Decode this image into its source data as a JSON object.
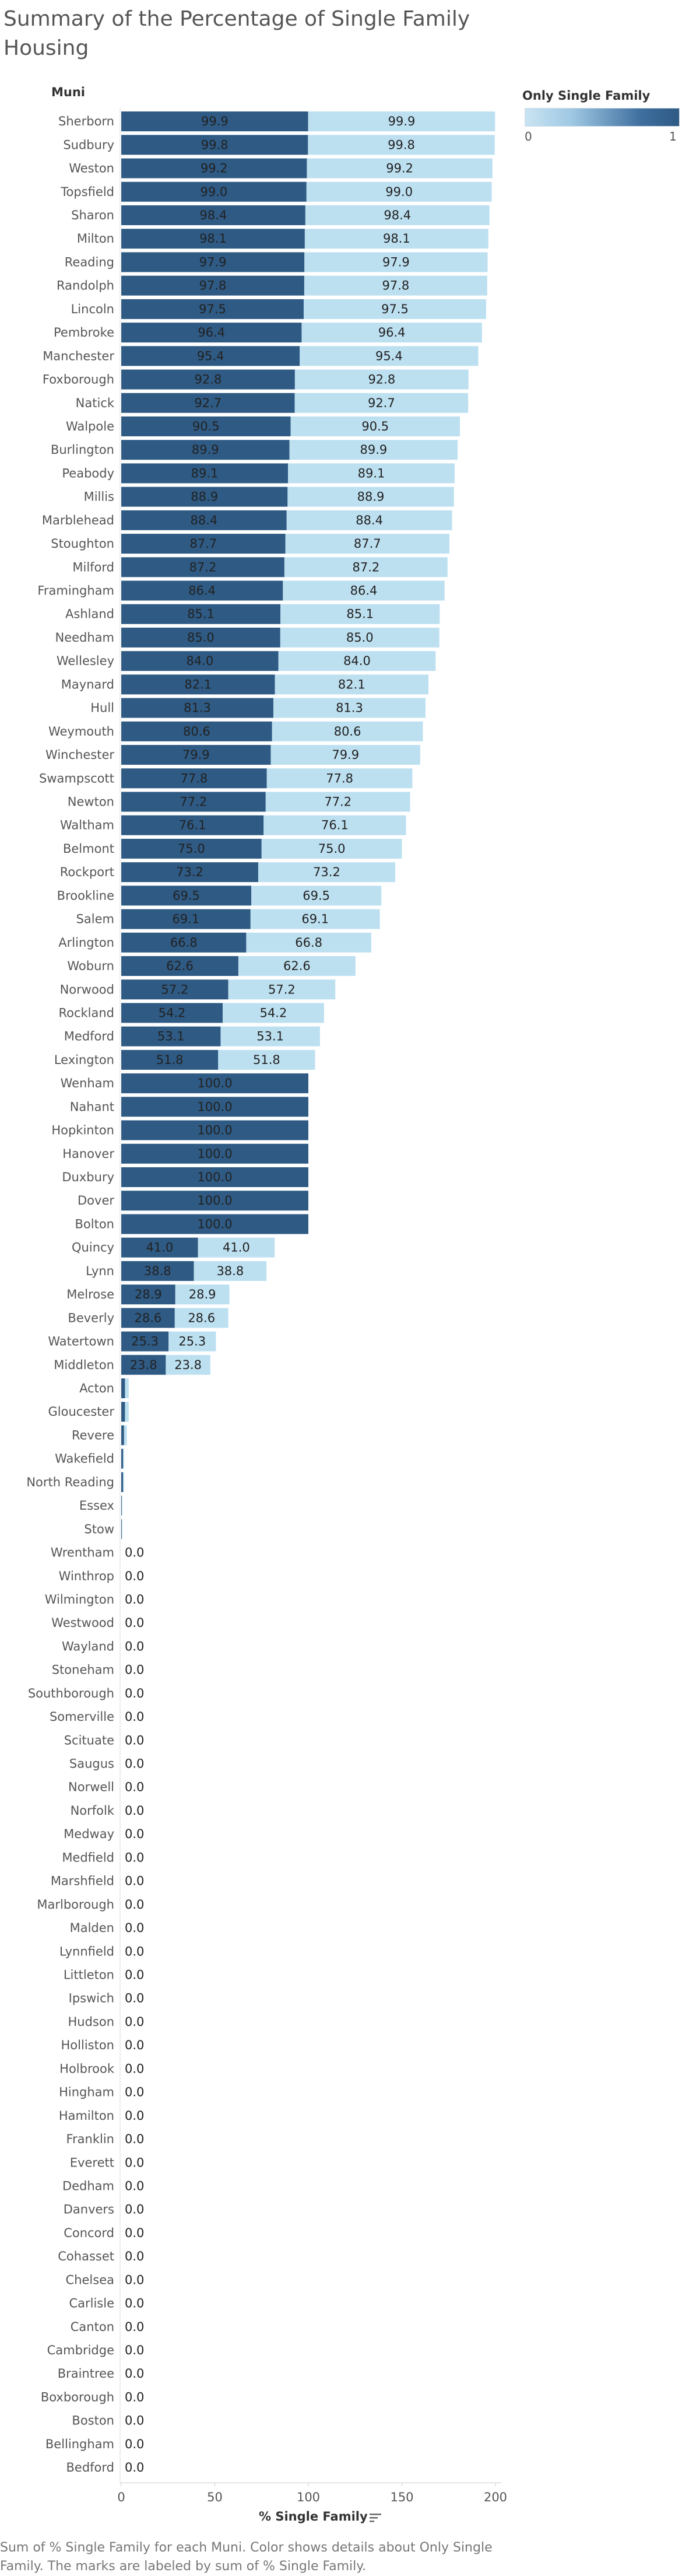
{
  "title": "Summary of the Percentage of Single Family Housing",
  "caption": "Sum of % Single Family for each Muni.  Color shows details about Only Single Family.  The marks are labeled by sum of % Single Family.",
  "colors": {
    "dark": "#2e5a84",
    "light": "#bde0f1",
    "axis": "#cccccc"
  },
  "chart_data": {
    "type": "bar",
    "orientation": "horizontal",
    "stacked": true,
    "row_header": "Muni",
    "xlabel": "% Single Family",
    "xlim": [
      0,
      200
    ],
    "x_ticks": [
      0,
      50,
      100,
      150,
      200
    ],
    "legend": {
      "title": "Only Single Family",
      "min_label": "0",
      "max_label": "1",
      "placement": "top-right"
    },
    "series": [
      {
        "name": "1",
        "color": "#2e5a84"
      },
      {
        "name": "0",
        "color": "#bde0f1"
      }
    ],
    "rows": [
      {
        "muni": "Sherborn",
        "dark": 99.9,
        "light": 99.9,
        "dark_label": "99.9",
        "light_label": "99.9"
      },
      {
        "muni": "Sudbury",
        "dark": 99.8,
        "light": 99.8,
        "dark_label": "99.8",
        "light_label": "99.8"
      },
      {
        "muni": "Weston",
        "dark": 99.2,
        "light": 99.2,
        "dark_label": "99.2",
        "light_label": "99.2"
      },
      {
        "muni": "Topsfield",
        "dark": 99.0,
        "light": 99.0,
        "dark_label": "99.0",
        "light_label": "99.0"
      },
      {
        "muni": "Sharon",
        "dark": 98.4,
        "light": 98.4,
        "dark_label": "98.4",
        "light_label": "98.4"
      },
      {
        "muni": "Milton",
        "dark": 98.1,
        "light": 98.1,
        "dark_label": "98.1",
        "light_label": "98.1"
      },
      {
        "muni": "Reading",
        "dark": 97.9,
        "light": 97.9,
        "dark_label": "97.9",
        "light_label": "97.9"
      },
      {
        "muni": "Randolph",
        "dark": 97.8,
        "light": 97.8,
        "dark_label": "97.8",
        "light_label": "97.8"
      },
      {
        "muni": "Lincoln",
        "dark": 97.5,
        "light": 97.5,
        "dark_label": "97.5",
        "light_label": "97.5"
      },
      {
        "muni": "Pembroke",
        "dark": 96.4,
        "light": 96.4,
        "dark_label": "96.4",
        "light_label": "96.4"
      },
      {
        "muni": "Manchester",
        "dark": 95.4,
        "light": 95.4,
        "dark_label": "95.4",
        "light_label": "95.4"
      },
      {
        "muni": "Foxborough",
        "dark": 92.8,
        "light": 92.8,
        "dark_label": "92.8",
        "light_label": "92.8"
      },
      {
        "muni": "Natick",
        "dark": 92.7,
        "light": 92.7,
        "dark_label": "92.7",
        "light_label": "92.7"
      },
      {
        "muni": "Walpole",
        "dark": 90.5,
        "light": 90.5,
        "dark_label": "90.5",
        "light_label": "90.5"
      },
      {
        "muni": "Burlington",
        "dark": 89.9,
        "light": 89.9,
        "dark_label": "89.9",
        "light_label": "89.9"
      },
      {
        "muni": "Peabody",
        "dark": 89.1,
        "light": 89.1,
        "dark_label": "89.1",
        "light_label": "89.1"
      },
      {
        "muni": "Millis",
        "dark": 88.9,
        "light": 88.9,
        "dark_label": "88.9",
        "light_label": "88.9"
      },
      {
        "muni": "Marblehead",
        "dark": 88.4,
        "light": 88.4,
        "dark_label": "88.4",
        "light_label": "88.4"
      },
      {
        "muni": "Stoughton",
        "dark": 87.7,
        "light": 87.7,
        "dark_label": "87.7",
        "light_label": "87.7"
      },
      {
        "muni": "Milford",
        "dark": 87.2,
        "light": 87.2,
        "dark_label": "87.2",
        "light_label": "87.2"
      },
      {
        "muni": "Framingham",
        "dark": 86.4,
        "light": 86.4,
        "dark_label": "86.4",
        "light_label": "86.4"
      },
      {
        "muni": "Ashland",
        "dark": 85.1,
        "light": 85.1,
        "dark_label": "85.1",
        "light_label": "85.1"
      },
      {
        "muni": "Needham",
        "dark": 85.0,
        "light": 85.0,
        "dark_label": "85.0",
        "light_label": "85.0"
      },
      {
        "muni": "Wellesley",
        "dark": 84.0,
        "light": 84.0,
        "dark_label": "84.0",
        "light_label": "84.0"
      },
      {
        "muni": "Maynard",
        "dark": 82.1,
        "light": 82.1,
        "dark_label": "82.1",
        "light_label": "82.1"
      },
      {
        "muni": "Hull",
        "dark": 81.3,
        "light": 81.3,
        "dark_label": "81.3",
        "light_label": "81.3"
      },
      {
        "muni": "Weymouth",
        "dark": 80.6,
        "light": 80.6,
        "dark_label": "80.6",
        "light_label": "80.6"
      },
      {
        "muni": "Winchester",
        "dark": 79.9,
        "light": 79.9,
        "dark_label": "79.9",
        "light_label": "79.9"
      },
      {
        "muni": "Swampscott",
        "dark": 77.8,
        "light": 77.8,
        "dark_label": "77.8",
        "light_label": "77.8"
      },
      {
        "muni": "Newton",
        "dark": 77.2,
        "light": 77.2,
        "dark_label": "77.2",
        "light_label": "77.2"
      },
      {
        "muni": "Waltham",
        "dark": 76.1,
        "light": 76.1,
        "dark_label": "76.1",
        "light_label": "76.1"
      },
      {
        "muni": "Belmont",
        "dark": 75.0,
        "light": 75.0,
        "dark_label": "75.0",
        "light_label": "75.0"
      },
      {
        "muni": "Rockport",
        "dark": 73.2,
        "light": 73.2,
        "dark_label": "73.2",
        "light_label": "73.2"
      },
      {
        "muni": "Brookline",
        "dark": 69.5,
        "light": 69.5,
        "dark_label": "69.5",
        "light_label": "69.5"
      },
      {
        "muni": "Salem",
        "dark": 69.1,
        "light": 69.1,
        "dark_label": "69.1",
        "light_label": "69.1"
      },
      {
        "muni": "Arlington",
        "dark": 66.8,
        "light": 66.8,
        "dark_label": "66.8",
        "light_label": "66.8"
      },
      {
        "muni": "Woburn",
        "dark": 62.6,
        "light": 62.6,
        "dark_label": "62.6",
        "light_label": "62.6"
      },
      {
        "muni": "Norwood",
        "dark": 57.2,
        "light": 57.2,
        "dark_label": "57.2",
        "light_label": "57.2"
      },
      {
        "muni": "Rockland",
        "dark": 54.2,
        "light": 54.2,
        "dark_label": "54.2",
        "light_label": "54.2"
      },
      {
        "muni": "Medford",
        "dark": 53.1,
        "light": 53.1,
        "dark_label": "53.1",
        "light_label": "53.1"
      },
      {
        "muni": "Lexington",
        "dark": 51.8,
        "light": 51.8,
        "dark_label": "51.8",
        "light_label": "51.8"
      },
      {
        "muni": "Wenham",
        "dark": 100.0,
        "light": 0,
        "dark_label": "100.0",
        "light_label": ""
      },
      {
        "muni": "Nahant",
        "dark": 100.0,
        "light": 0,
        "dark_label": "100.0",
        "light_label": ""
      },
      {
        "muni": "Hopkinton",
        "dark": 100.0,
        "light": 0,
        "dark_label": "100.0",
        "light_label": ""
      },
      {
        "muni": "Hanover",
        "dark": 100.0,
        "light": 0,
        "dark_label": "100.0",
        "light_label": ""
      },
      {
        "muni": "Duxbury",
        "dark": 100.0,
        "light": 0,
        "dark_label": "100.0",
        "light_label": ""
      },
      {
        "muni": "Dover",
        "dark": 100.0,
        "light": 0,
        "dark_label": "100.0",
        "light_label": ""
      },
      {
        "muni": "Bolton",
        "dark": 100.0,
        "light": 0,
        "dark_label": "100.0",
        "light_label": ""
      },
      {
        "muni": "Quincy",
        "dark": 41.0,
        "light": 41.0,
        "dark_label": "41.0",
        "light_label": "41.0"
      },
      {
        "muni": "Lynn",
        "dark": 38.8,
        "light": 38.8,
        "dark_label": "38.8",
        "light_label": "38.8"
      },
      {
        "muni": "Melrose",
        "dark": 28.9,
        "light": 28.9,
        "dark_label": "28.9",
        "light_label": "28.9"
      },
      {
        "muni": "Beverly",
        "dark": 28.6,
        "light": 28.6,
        "dark_label": "28.6",
        "light_label": "28.6"
      },
      {
        "muni": "Watertown",
        "dark": 25.3,
        "light": 25.3,
        "dark_label": "25.3",
        "light_label": "25.3"
      },
      {
        "muni": "Middleton",
        "dark": 23.8,
        "light": 23.8,
        "dark_label": "23.8",
        "light_label": "23.8"
      },
      {
        "muni": "Acton",
        "dark": 2.0,
        "light": 2.0,
        "dark_label": "",
        "light_label": ""
      },
      {
        "muni": "Gloucester",
        "dark": 2.0,
        "light": 2.0,
        "dark_label": "",
        "light_label": ""
      },
      {
        "muni": "Revere",
        "dark": 1.5,
        "light": 1.5,
        "dark_label": "",
        "light_label": ""
      },
      {
        "muni": "Wakefield",
        "dark": 1.0,
        "light": 0.5,
        "dark_label": "",
        "light_label": ""
      },
      {
        "muni": "North Reading",
        "dark": 1.0,
        "light": 0.5,
        "dark_label": "",
        "light_label": ""
      },
      {
        "muni": "Essex",
        "dark": 0.3,
        "light": 0.2,
        "dark_label": "",
        "light_label": ""
      },
      {
        "muni": "Stow",
        "dark": 0.3,
        "light": 0.2,
        "dark_label": "",
        "light_label": ""
      },
      {
        "muni": "Wrentham",
        "dark": 0,
        "light": 0,
        "dark_label": "",
        "light_label": "0.0"
      },
      {
        "muni": "Winthrop",
        "dark": 0,
        "light": 0,
        "dark_label": "",
        "light_label": "0.0"
      },
      {
        "muni": "Wilmington",
        "dark": 0,
        "light": 0,
        "dark_label": "",
        "light_label": "0.0"
      },
      {
        "muni": "Westwood",
        "dark": 0,
        "light": 0,
        "dark_label": "",
        "light_label": "0.0"
      },
      {
        "muni": "Wayland",
        "dark": 0,
        "light": 0,
        "dark_label": "",
        "light_label": "0.0"
      },
      {
        "muni": "Stoneham",
        "dark": 0,
        "light": 0,
        "dark_label": "",
        "light_label": "0.0"
      },
      {
        "muni": "Southborough",
        "dark": 0,
        "light": 0,
        "dark_label": "",
        "light_label": "0.0"
      },
      {
        "muni": "Somerville",
        "dark": 0,
        "light": 0,
        "dark_label": "",
        "light_label": "0.0"
      },
      {
        "muni": "Scituate",
        "dark": 0,
        "light": 0,
        "dark_label": "",
        "light_label": "0.0"
      },
      {
        "muni": "Saugus",
        "dark": 0,
        "light": 0,
        "dark_label": "",
        "light_label": "0.0"
      },
      {
        "muni": "Norwell",
        "dark": 0,
        "light": 0,
        "dark_label": "",
        "light_label": "0.0"
      },
      {
        "muni": "Norfolk",
        "dark": 0,
        "light": 0,
        "dark_label": "",
        "light_label": "0.0"
      },
      {
        "muni": "Medway",
        "dark": 0,
        "light": 0,
        "dark_label": "",
        "light_label": "0.0"
      },
      {
        "muni": "Medfield",
        "dark": 0,
        "light": 0,
        "dark_label": "",
        "light_label": "0.0"
      },
      {
        "muni": "Marshfield",
        "dark": 0,
        "light": 0,
        "dark_label": "",
        "light_label": "0.0"
      },
      {
        "muni": "Marlborough",
        "dark": 0,
        "light": 0,
        "dark_label": "",
        "light_label": "0.0"
      },
      {
        "muni": "Malden",
        "dark": 0,
        "light": 0,
        "dark_label": "",
        "light_label": "0.0"
      },
      {
        "muni": "Lynnfield",
        "dark": 0,
        "light": 0,
        "dark_label": "",
        "light_label": "0.0"
      },
      {
        "muni": "Littleton",
        "dark": 0,
        "light": 0,
        "dark_label": "",
        "light_label": "0.0"
      },
      {
        "muni": "Ipswich",
        "dark": 0,
        "light": 0,
        "dark_label": "",
        "light_label": "0.0"
      },
      {
        "muni": "Hudson",
        "dark": 0,
        "light": 0,
        "dark_label": "",
        "light_label": "0.0"
      },
      {
        "muni": "Holliston",
        "dark": 0,
        "light": 0,
        "dark_label": "",
        "light_label": "0.0"
      },
      {
        "muni": "Holbrook",
        "dark": 0,
        "light": 0,
        "dark_label": "",
        "light_label": "0.0"
      },
      {
        "muni": "Hingham",
        "dark": 0,
        "light": 0,
        "dark_label": "",
        "light_label": "0.0"
      },
      {
        "muni": "Hamilton",
        "dark": 0,
        "light": 0,
        "dark_label": "",
        "light_label": "0.0"
      },
      {
        "muni": "Franklin",
        "dark": 0,
        "light": 0,
        "dark_label": "",
        "light_label": "0.0"
      },
      {
        "muni": "Everett",
        "dark": 0,
        "light": 0,
        "dark_label": "",
        "light_label": "0.0"
      },
      {
        "muni": "Dedham",
        "dark": 0,
        "light": 0,
        "dark_label": "",
        "light_label": "0.0"
      },
      {
        "muni": "Danvers",
        "dark": 0,
        "light": 0,
        "dark_label": "",
        "light_label": "0.0"
      },
      {
        "muni": "Concord",
        "dark": 0,
        "light": 0,
        "dark_label": "",
        "light_label": "0.0"
      },
      {
        "muni": "Cohasset",
        "dark": 0,
        "light": 0,
        "dark_label": "",
        "light_label": "0.0"
      },
      {
        "muni": "Chelsea",
        "dark": 0,
        "light": 0,
        "dark_label": "",
        "light_label": "0.0"
      },
      {
        "muni": "Carlisle",
        "dark": 0,
        "light": 0,
        "dark_label": "",
        "light_label": "0.0"
      },
      {
        "muni": "Canton",
        "dark": 0,
        "light": 0,
        "dark_label": "",
        "light_label": "0.0"
      },
      {
        "muni": "Cambridge",
        "dark": 0,
        "light": 0,
        "dark_label": "",
        "light_label": "0.0"
      },
      {
        "muni": "Braintree",
        "dark": 0,
        "light": 0,
        "dark_label": "",
        "light_label": "0.0"
      },
      {
        "muni": "Boxborough",
        "dark": 0,
        "light": 0,
        "dark_label": "",
        "light_label": "0.0"
      },
      {
        "muni": "Boston",
        "dark": 0,
        "light": 0,
        "dark_label": "",
        "light_label": "0.0"
      },
      {
        "muni": "Bellingham",
        "dark": 0,
        "light": 0,
        "dark_label": "",
        "light_label": "0.0"
      },
      {
        "muni": "Bedford",
        "dark": 0,
        "light": 0,
        "dark_label": "",
        "light_label": "0.0"
      }
    ]
  }
}
